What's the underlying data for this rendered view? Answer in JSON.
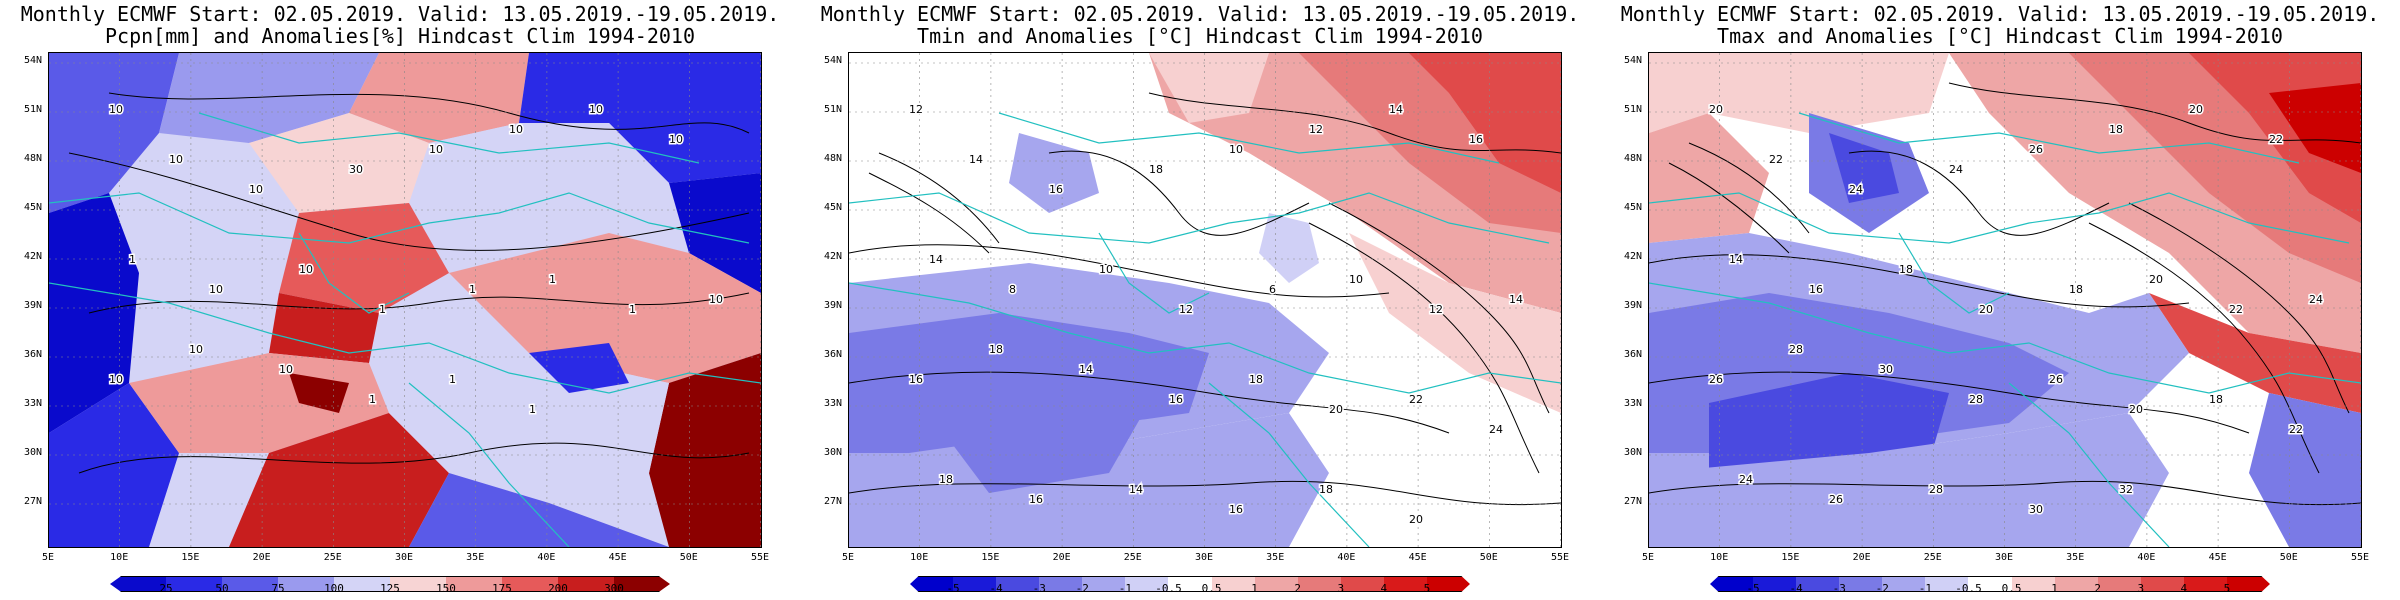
{
  "panels": [
    {
      "title1": "Monthly ECMWF Start: 02.05.2019. Valid: 13.05.2019.-19.05.2019.",
      "title2": "Pcpn[mm] and Anomalies[%] Hindcast Clim 1994-2010",
      "colorbar": {
        "labels": [
          "25",
          "50",
          "75",
          "100",
          "125",
          "150",
          "175",
          "200",
          "300"
        ],
        "colors": [
          "#0a0acc",
          "#2a2ae6",
          "#5a5ae8",
          "#9a9aee",
          "#d4d4f6",
          "#f7d4d4",
          "#ee9a9a",
          "#e65a5a",
          "#c81e1e",
          "#8c0000"
        ]
      },
      "contour_labels": [
        "10",
        "10",
        "10",
        "30",
        "10",
        "10",
        "10",
        "10",
        "1",
        "10",
        "10",
        "1",
        "1",
        "1",
        "1",
        "10",
        "10",
        "10",
        "10",
        "1",
        "1",
        "1"
      ]
    },
    {
      "title1": "Monthly ECMWF Start: 02.05.2019. Valid: 13.05.2019.-19.05.2019.",
      "title2": "Tmin and Anomalies [°C] Hindcast Clim 1994-2010",
      "colorbar": {
        "labels": [
          "-5",
          "-4",
          "-3",
          "-2",
          "-1",
          "-0.5",
          "0.5",
          "1",
          "2",
          "3",
          "4",
          "5"
        ],
        "colors": [
          "#0000cc",
          "#1a1ad9",
          "#4a4ae0",
          "#7a7ae6",
          "#a6a6ee",
          "#d0d0f6",
          "#ffffff",
          "#f7d0d0",
          "#eea6a6",
          "#e67a7a",
          "#e04a4a",
          "#d91a1a",
          "#cc0000"
        ]
      },
      "contour_labels": [
        "12",
        "14",
        "16",
        "18",
        "10",
        "12",
        "14",
        "16",
        "14",
        "8",
        "10",
        "12",
        "6",
        "10",
        "12",
        "14",
        "16",
        "18",
        "14",
        "16",
        "18",
        "20",
        "22",
        "24",
        "18",
        "16",
        "14",
        "16",
        "18",
        "20"
      ]
    },
    {
      "title1": "Monthly ECMWF Start: 02.05.2019. Valid: 13.05.2019.-19.05.2019.",
      "title2": "Tmax and Anomalies [°C] Hindcast Clim 1994-2010",
      "colorbar": {
        "labels": [
          "-5",
          "-4",
          "-3",
          "-2",
          "-1",
          "-0.5",
          "0.5",
          "1",
          "2",
          "3",
          "4",
          "5"
        ],
        "colors": [
          "#0000cc",
          "#1a1ad9",
          "#4a4ae0",
          "#7a7ae6",
          "#a6a6ee",
          "#d0d0f6",
          "#ffffff",
          "#f7d0d0",
          "#eea6a6",
          "#e67a7a",
          "#e04a4a",
          "#d91a1a",
          "#cc0000"
        ]
      },
      "contour_labels": [
        "20",
        "22",
        "24",
        "24",
        "26",
        "18",
        "20",
        "22",
        "14",
        "16",
        "18",
        "20",
        "18",
        "20",
        "22",
        "24",
        "26",
        "28",
        "30",
        "28",
        "26",
        "20",
        "18",
        "22",
        "24",
        "26",
        "28",
        "30",
        "32"
      ]
    }
  ],
  "axes": {
    "lat_labels": [
      "54N",
      "51N",
      "48N",
      "45N",
      "42N",
      "39N",
      "36N",
      "33N",
      "30N",
      "27N"
    ],
    "lon_labels": [
      "5E",
      "10E",
      "15E",
      "20E",
      "25E",
      "30E",
      "35E",
      "40E",
      "45E",
      "50E",
      "55E"
    ]
  }
}
